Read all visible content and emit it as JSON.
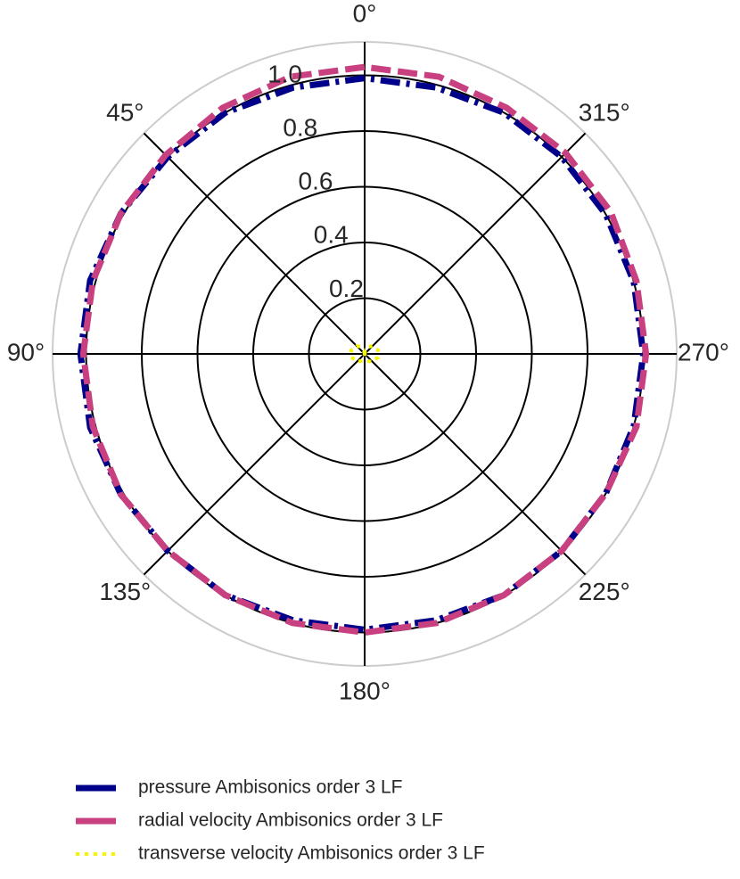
{
  "chart_data": {
    "type": "polar",
    "theta_direction": "counterclockwise",
    "theta_zero_location": "N",
    "theta": [
      0,
      15,
      30,
      45,
      60,
      75,
      90,
      105,
      120,
      135,
      150,
      165,
      180,
      195,
      210,
      225,
      240,
      255,
      270,
      285,
      300,
      315,
      330,
      345,
      360
    ],
    "series": [
      {
        "name": "pressure Ambisonics order 3 LF",
        "color": "#00008b",
        "dash": "dashdot",
        "values": [
          0.99,
          0.99,
          1.0,
          1.0,
          1.01,
          1.02,
          1.02,
          1.02,
          1.01,
          1.0,
          1.0,
          0.99,
          0.99,
          0.99,
          1.0,
          1.0,
          1.0,
          1.0,
          1.0,
          1.0,
          1.0,
          1.0,
          1.0,
          0.99,
          0.99
        ]
      },
      {
        "name": "radial velocity Ambisonics order 3 LF",
        "color": "#c94080",
        "dash": "dashed",
        "values": [
          1.03,
          1.03,
          1.02,
          1.01,
          1.01,
          1.01,
          1.01,
          1.01,
          1.01,
          1.0,
          1.0,
          1.0,
          1.0,
          1.0,
          1.0,
          1.0,
          1.0,
          1.01,
          1.01,
          1.01,
          1.02,
          1.02,
          1.02,
          1.03,
          1.03
        ]
      },
      {
        "name": "transverse velocity Ambisonics order 3 LF",
        "color": "#f5f500",
        "dash": "dotted",
        "values": [
          0,
          0.01,
          0.03,
          0.04,
          0.04,
          0.05,
          0.05,
          0.05,
          0.04,
          0.04,
          0.03,
          0.01,
          0,
          0.01,
          0.03,
          0.04,
          0.04,
          0.05,
          0.05,
          0.05,
          0.04,
          0.04,
          0.03,
          0.01,
          0
        ]
      }
    ],
    "rlim": [
      0,
      1.12
    ],
    "rticks": [
      0.2,
      0.4,
      0.6,
      0.8,
      {
        "value": 1,
        "label": "1.0"
      }
    ],
    "thetaticks": [
      {
        "value": 0,
        "label": "0°"
      },
      {
        "value": 45,
        "label": "45°"
      },
      {
        "value": 90,
        "label": "90°"
      },
      {
        "value": 135,
        "label": "135°"
      },
      {
        "value": 180,
        "label": "180°"
      },
      {
        "value": 225,
        "label": "225°"
      },
      {
        "value": 270,
        "label": "270°"
      },
      {
        "value": 315,
        "label": "315°"
      }
    ],
    "grid": true
  }
}
